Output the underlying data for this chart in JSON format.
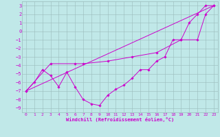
{
  "title": "",
  "xlabel": "Windchill (Refroidissement éolien,°C)",
  "bg_color": "#c0e8e8",
  "line_color": "#cc00cc",
  "grid_color": "#99bbbb",
  "xlim": [
    -0.5,
    23.5
  ],
  "ylim": [
    -9.5,
    3.5
  ],
  "xticks": [
    0,
    1,
    2,
    3,
    4,
    5,
    6,
    7,
    8,
    9,
    10,
    11,
    12,
    13,
    14,
    15,
    16,
    17,
    18,
    19,
    20,
    21,
    22,
    23
  ],
  "yticks": [
    3,
    2,
    1,
    0,
    -1,
    -2,
    -3,
    -4,
    -5,
    -6,
    -7,
    -8,
    -9
  ],
  "data_x": [
    0,
    1,
    2,
    3,
    4,
    5,
    6,
    7,
    8,
    9,
    10,
    11,
    12,
    13,
    14,
    15,
    16,
    17,
    18,
    19,
    20,
    21,
    22,
    23
  ],
  "data_y": [
    -7.0,
    -6.0,
    -4.5,
    -5.2,
    -6.5,
    -4.8,
    -6.5,
    -8.0,
    -8.5,
    -8.7,
    -7.5,
    -6.8,
    -6.3,
    -5.5,
    -4.5,
    -4.5,
    -3.5,
    -3.0,
    -1.0,
    -1.0,
    1.0,
    2.0,
    3.0,
    3.0
  ],
  "smooth_x": [
    0,
    3,
    6,
    7,
    10,
    13,
    16,
    19,
    21,
    22,
    23
  ],
  "smooth_y": [
    -7.0,
    -3.8,
    -3.8,
    -3.8,
    -3.5,
    -3.0,
    -2.5,
    -1.0,
    -1.0,
    2.0,
    3.0
  ],
  "trend_x": [
    0,
    23
  ],
  "trend_y": [
    -7.0,
    3.0
  ]
}
